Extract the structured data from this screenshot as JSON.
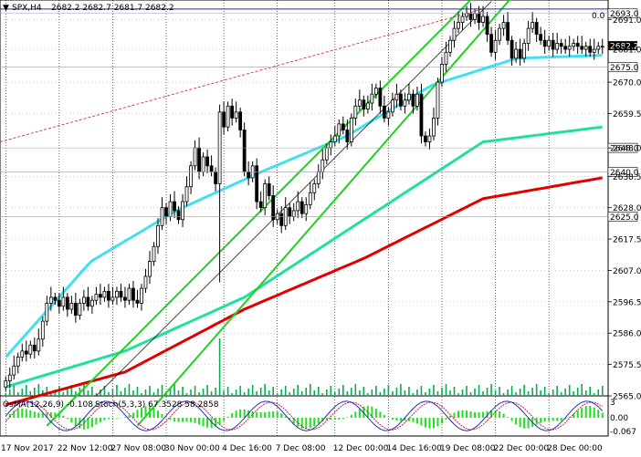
{
  "header": {
    "symbol": "SPX,H4",
    "quotes": "2682.2 2682.7 2681.7 2682.2"
  },
  "indicator_header": {
    "osma": "OsMA(12,26,9) -0.108",
    "stoch": "Stoch(5,3,3) 67.3528 58.2858"
  },
  "fib_label": "0.0",
  "colors": {
    "background": "#ffffff",
    "candle": "#000000",
    "volume": "#00b050",
    "ma_short": "#40e0f0",
    "ma_mid": "#20e0a0",
    "ma_long": "#e00000",
    "channel": "#22d022",
    "resistance": "#2020c0",
    "fib": "#d02020",
    "osma": "#20e020",
    "stoch_main": "#2030c0",
    "stoch_signal": "#c02040",
    "grid": "#000000",
    "price_tag": "#ffffff",
    "current_tag": "#000000"
  },
  "chart_data": {
    "type": "candlestick",
    "symbol": "SPX",
    "timeframe": "H4",
    "x_tick_labels": [
      "17 Nov 2017",
      "22 Nov 12:00",
      "27 Nov 08:00",
      "30 Nov 00:00",
      "4 Dec 16:00",
      "7 Dec 08:00",
      "12 Dec 00:00",
      "14 Dec 16:00",
      "19 Dec 08:00",
      "22 Dec 00:00",
      "28 Dec 00:00"
    ],
    "y_tick_labels": [
      "2691.0",
      "2681.0",
      "2670.0",
      "2659.5",
      "2648.0",
      "2638.5",
      "2628.0",
      "2617.5",
      "2607.0",
      "2596.5",
      "2586.0",
      "2575.5",
      "2565.0"
    ],
    "y_ticks": [
      2691.0,
      2681.0,
      2670.0,
      2659.5,
      2648.0,
      2638.5,
      2628.0,
      2617.5,
      2607.0,
      2596.5,
      2586.0,
      2575.5,
      2565.0
    ],
    "ylim": [
      2565.0,
      2697.5
    ],
    "price_levels": [
      {
        "label": "2693.0",
        "value": 2693.0
      },
      {
        "label": "2675.0",
        "value": 2675.0
      },
      {
        "label": "2648.0",
        "value": 2648.0
      },
      {
        "label": "2640.0",
        "value": 2640.0
      },
      {
        "label": "2625.0",
        "value": 2625.0
      }
    ],
    "current_price": {
      "label": "2682.2",
      "value": 2682.2
    },
    "closes": [
      2570,
      2572,
      2575,
      2578,
      2580,
      2579,
      2582,
      2580,
      2584,
      2590,
      2596,
      2598,
      2597,
      2595,
      2598,
      2594,
      2596,
      2592,
      2596,
      2598,
      2595,
      2597,
      2599,
      2598,
      2600,
      2597,
      2598,
      2600,
      2598,
      2597,
      2601,
      2597,
      2596,
      2601,
      2605,
      2610,
      2615,
      2622,
      2628,
      2625,
      2630,
      2627,
      2624,
      2630,
      2635,
      2642,
      2648,
      2640,
      2645,
      2642,
      2640,
      2636,
      2660,
      2655,
      2662,
      2658,
      2660,
      2654,
      2640,
      2638,
      2642,
      2630,
      2628,
      2636,
      2632,
      2624,
      2626,
      2622,
      2628,
      2625,
      2627,
      2630,
      2626,
      2629,
      2633,
      2636,
      2640,
      2644,
      2648,
      2650,
      2652,
      2656,
      2654,
      2650,
      2658,
      2662,
      2664,
      2661,
      2663,
      2666,
      2668,
      2662,
      2658,
      2660,
      2664,
      2666,
      2662,
      2664,
      2666,
      2662,
      2666,
      2652,
      2650,
      2652,
      2658,
      2670,
      2676,
      2680,
      2684,
      2688,
      2690,
      2692,
      2693,
      2691,
      2693,
      2690,
      2692,
      2686,
      2680,
      2684,
      2688,
      2690,
      2684,
      2678,
      2681,
      2678,
      2683,
      2688,
      2690,
      2686,
      2684,
      2682,
      2684,
      2681,
      2683,
      2682,
      2681,
      2682,
      2683,
      2682,
      2681,
      2682,
      2680,
      2681,
      2682,
      2682
    ],
    "ma_short": [
      2578,
      2610,
      2627,
      2640,
      2652,
      2669,
      2678,
      2679
    ],
    "ma_mid": [
      2568,
      2580,
      2598,
      2624,
      2650,
      2655
    ],
    "ma_long": [
      2562,
      2573,
      2594,
      2611,
      2631,
      2638
    ],
    "osma_range": [
      -0.067,
      0.0,
      3
    ],
    "osma_tick_labels": [
      "3",
      "0.00",
      "-0.067"
    ]
  }
}
